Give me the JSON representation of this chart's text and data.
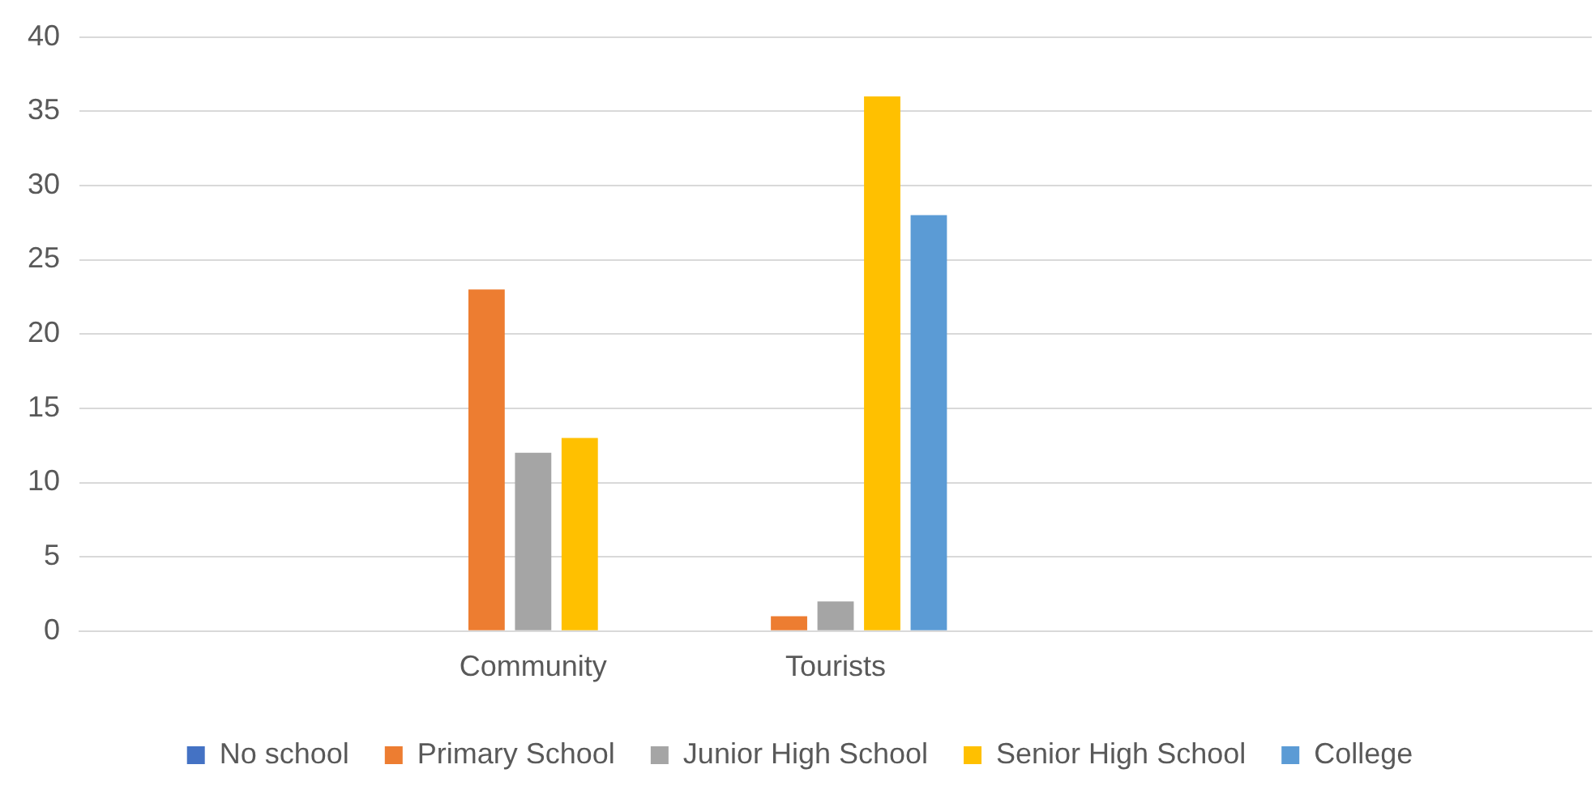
{
  "chart_data": {
    "type": "bar",
    "categories": [
      null,
      "Community",
      "Tourists",
      null,
      null
    ],
    "series": [
      {
        "name": "No school",
        "color": "#4472c4",
        "values": [
          null,
          0,
          0,
          null,
          null
        ]
      },
      {
        "name": "Primary School",
        "color": "#ed7d31",
        "values": [
          null,
          23,
          1,
          null,
          null
        ]
      },
      {
        "name": "Junior High School",
        "color": "#a5a5a5",
        "values": [
          null,
          12,
          2,
          null,
          null
        ]
      },
      {
        "name": "Senior High School",
        "color": "#ffc000",
        "values": [
          null,
          13,
          36,
          null,
          null
        ]
      },
      {
        "name": "College",
        "color": "#5b9bd5",
        "values": [
          null,
          0,
          28,
          null,
          null
        ]
      }
    ],
    "ylim": [
      0,
      40
    ],
    "yticks": [
      0,
      5,
      10,
      15,
      20,
      25,
      30,
      35,
      40
    ],
    "grid": "y",
    "legend": "bottom"
  }
}
